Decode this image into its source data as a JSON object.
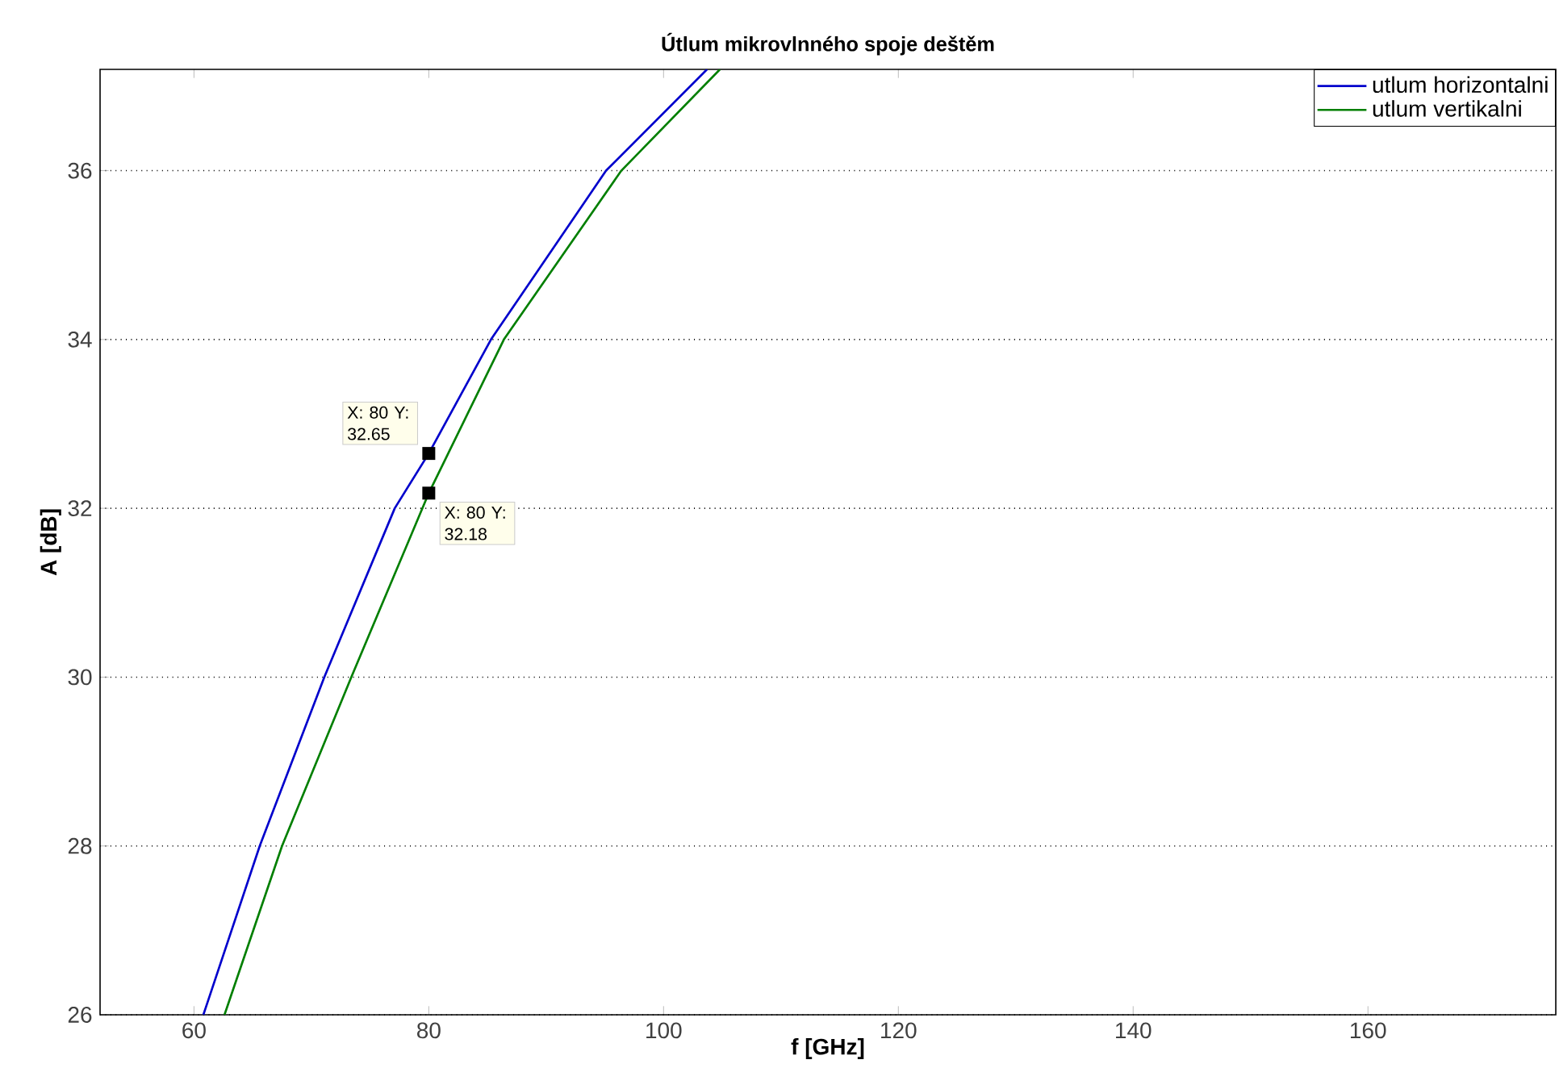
{
  "chart_data": {
    "type": "line",
    "title": "Útlum mikrovlnného spoje deštěm",
    "xlabel": "f [GHz]",
    "ylabel": "A [dB]",
    "xlim": [
      52,
      176
    ],
    "ylim": [
      26,
      37.2
    ],
    "xticks": [
      60,
      80,
      100,
      120,
      140,
      160
    ],
    "yticks": [
      26,
      28,
      30,
      32,
      34,
      36
    ],
    "grid": "y",
    "legend": "top right",
    "line_style": "solid",
    "marker": "none",
    "series": [
      {
        "name": "utlum horizontalni",
        "color": "#0000cc",
        "x": [
          60.8,
          65.6,
          71.1,
          77.1,
          80,
          85.3,
          95.1,
          103.7
        ],
        "values": [
          26,
          28,
          30,
          32,
          32.65,
          34,
          36,
          37.2
        ]
      },
      {
        "name": "utlum vertikalni",
        "color": "#007f00",
        "x": [
          62.6,
          67.5,
          73.4,
          80,
          86.4,
          96.4,
          104.8
        ],
        "values": [
          26,
          28,
          30,
          32.18,
          34,
          36,
          37.2
        ]
      }
    ],
    "annotations": [
      {
        "text": "X: 80 Y: 32.65",
        "x": 80,
        "y": 32.65
      },
      {
        "text": "X: 80 Y: 32.18",
        "x": 80,
        "y": 32.18
      }
    ]
  }
}
